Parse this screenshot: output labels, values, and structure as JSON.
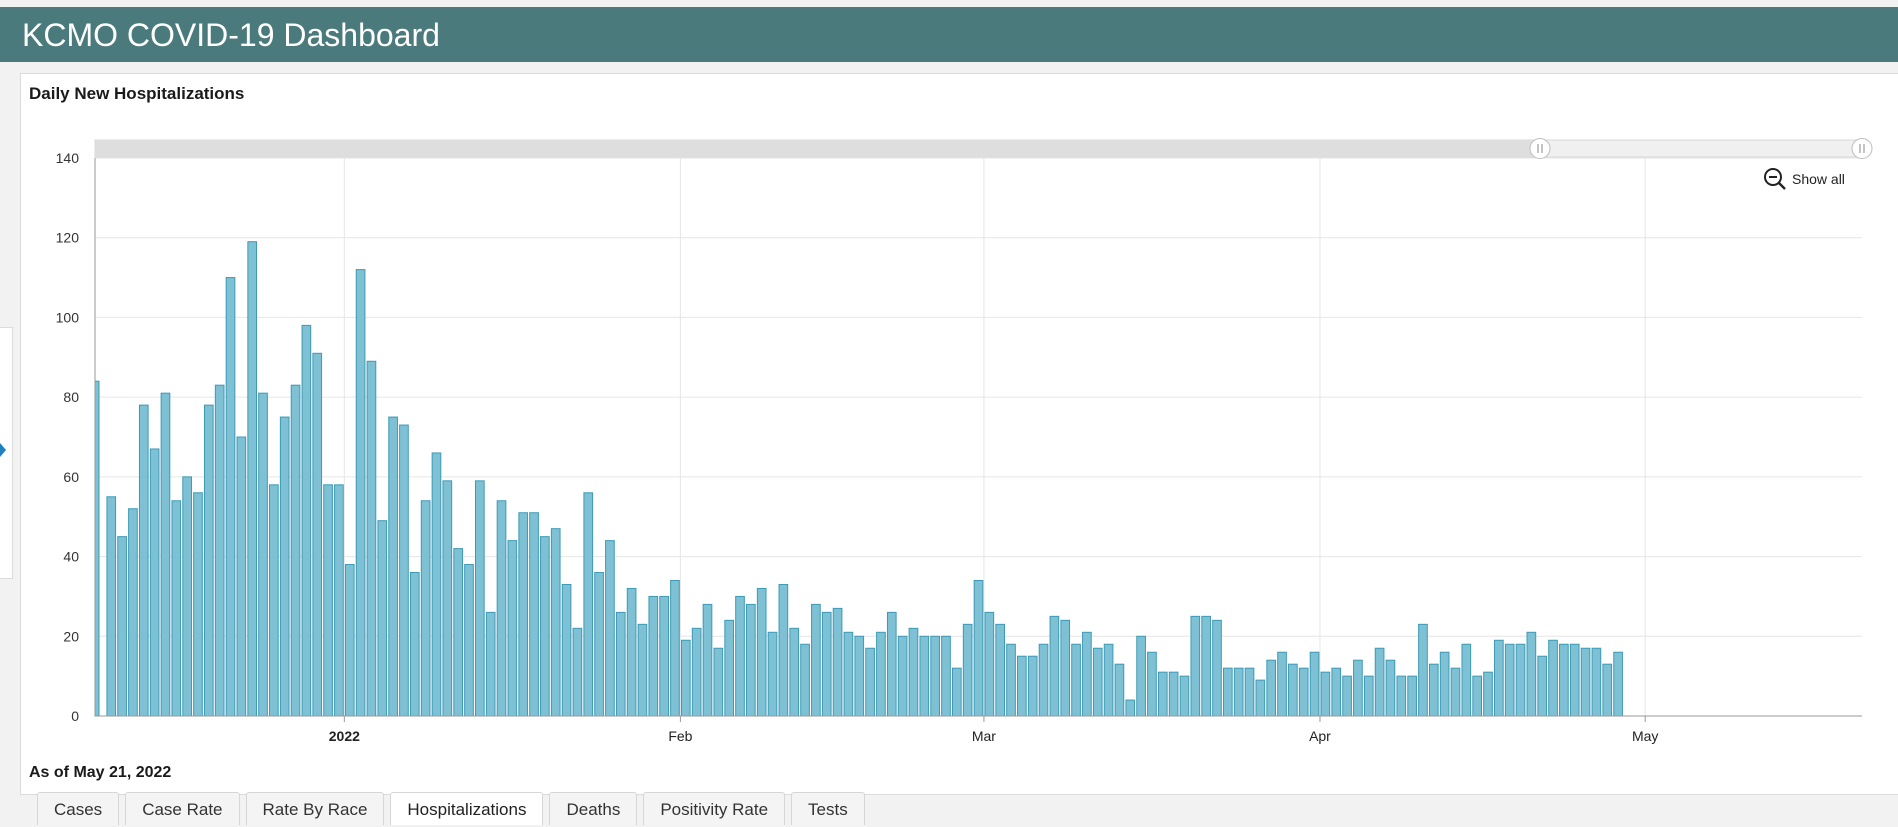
{
  "header": {
    "title": "KCMO COVID-19 Dashboard"
  },
  "chart_title": "Daily New Hospitalizations",
  "footnote": "As of May 21, 2022",
  "show_all_label": "Show all",
  "tabs": [
    {
      "label": "Cases",
      "active": false
    },
    {
      "label": "Case Rate",
      "active": false
    },
    {
      "label": "Rate By Race",
      "active": false
    },
    {
      "label": "Hospitalizations",
      "active": true
    },
    {
      "label": "Deaths",
      "active": false
    },
    {
      "label": "Positivity Rate",
      "active": false
    },
    {
      "label": "Tests",
      "active": false
    }
  ],
  "colors": {
    "header_bg": "#4a7a7c",
    "bar_fill": "#7fc1d4",
    "bar_stroke": "#3d9ab5",
    "grid": "#e6e6e6"
  },
  "chart_data": {
    "type": "bar",
    "title": "Daily New Hospitalizations",
    "x_start_date": "2021-12-09",
    "x_end_date": "2022-05-21",
    "ylim": [
      0,
      140
    ],
    "y_ticks": [
      0,
      20,
      40,
      60,
      80,
      100,
      120,
      140
    ],
    "x_ticks": [
      {
        "label": "2022",
        "date": "2022-01-01",
        "bold": true
      },
      {
        "label": "Feb",
        "date": "2022-02-01",
        "bold": false
      },
      {
        "label": "Mar",
        "date": "2022-03-01",
        "bold": false
      },
      {
        "label": "Apr",
        "date": "2022-04-01",
        "bold": false
      },
      {
        "label": "May",
        "date": "2022-05-01",
        "bold": false
      }
    ],
    "grid": true,
    "values": [
      84,
      55,
      45,
      52,
      78,
      67,
      81,
      54,
      60,
      56,
      78,
      83,
      110,
      70,
      119,
      81,
      58,
      75,
      83,
      98,
      91,
      58,
      58,
      38,
      112,
      89,
      49,
      75,
      73,
      36,
      54,
      66,
      59,
      42,
      38,
      59,
      26,
      54,
      44,
      51,
      51,
      45,
      47,
      33,
      22,
      56,
      36,
      44,
      26,
      32,
      23,
      30,
      30,
      34,
      19,
      22,
      28,
      17,
      24,
      30,
      28,
      32,
      21,
      33,
      22,
      18,
      28,
      26,
      27,
      21,
      20,
      17,
      21,
      26,
      20,
      22,
      20,
      20,
      20,
      12,
      23,
      34,
      26,
      23,
      18,
      15,
      15,
      18,
      25,
      24,
      18,
      21,
      17,
      18,
      13,
      4,
      20,
      16,
      11,
      11,
      10,
      25,
      25,
      24,
      12,
      12,
      12,
      9,
      14,
      16,
      13,
      12,
      16,
      11,
      12,
      10,
      14,
      10,
      17,
      14,
      10,
      10,
      23,
      13,
      16,
      12,
      18,
      10,
      11,
      19,
      18,
      18,
      21,
      15,
      19,
      18,
      18,
      17,
      17,
      13,
      16
    ]
  }
}
